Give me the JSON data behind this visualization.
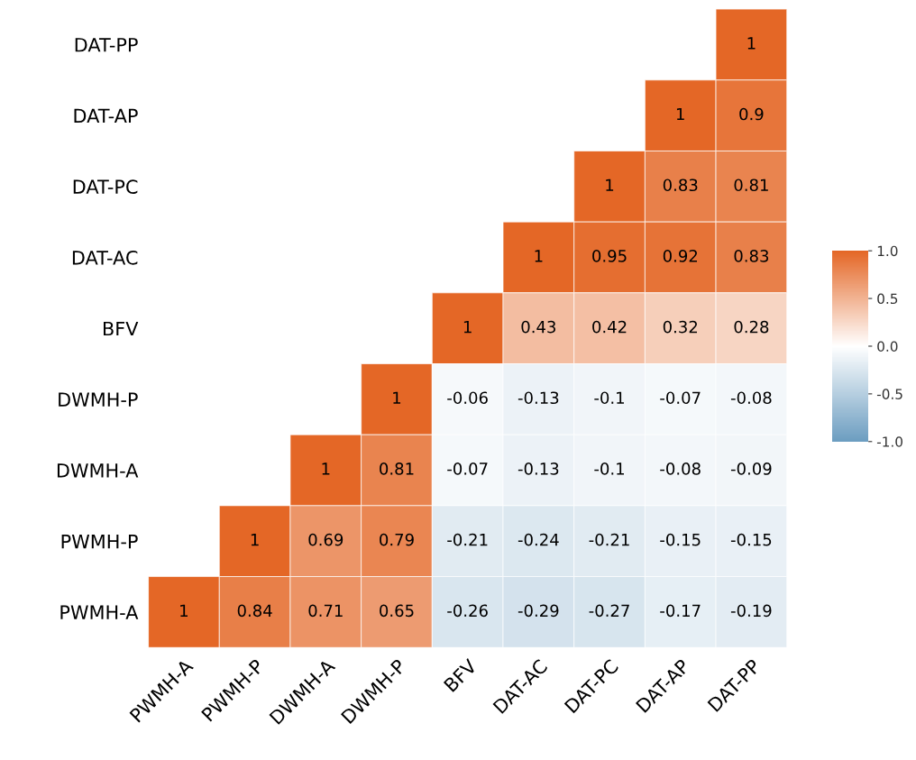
{
  "chart_data": {
    "type": "heatmap",
    "categories": [
      "PWMH-A",
      "PWMH-P",
      "DWMH-A",
      "DWMH-P",
      "BFV",
      "DAT-AC",
      "DAT-PC",
      "DAT-AP",
      "DAT-PP"
    ],
    "y_categories": [
      "DAT-PP",
      "DAT-AP",
      "DAT-PC",
      "DAT-AC",
      "BFV",
      "DWMH-P",
      "DWMH-A",
      "PWMH-P",
      "PWMH-A"
    ],
    "cells": [
      [
        null,
        null,
        null,
        null,
        null,
        null,
        null,
        null,
        1
      ],
      [
        null,
        null,
        null,
        null,
        null,
        null,
        null,
        1,
        0.9
      ],
      [
        null,
        null,
        null,
        null,
        null,
        null,
        1,
        0.83,
        0.81
      ],
      [
        null,
        null,
        null,
        null,
        null,
        1,
        0.95,
        0.92,
        0.83
      ],
      [
        null,
        null,
        null,
        null,
        1,
        0.43,
        0.42,
        0.32,
        0.28
      ],
      [
        null,
        null,
        null,
        1,
        -0.06,
        -0.13,
        -0.1,
        -0.07,
        -0.08
      ],
      [
        null,
        null,
        1,
        0.81,
        -0.07,
        -0.13,
        -0.1,
        -0.08,
        -0.09
      ],
      [
        null,
        1,
        0.69,
        0.79,
        -0.21,
        -0.24,
        -0.21,
        -0.15,
        -0.15
      ],
      [
        1,
        0.84,
        0.71,
        0.65,
        -0.26,
        -0.29,
        -0.27,
        -0.17,
        -0.19
      ]
    ],
    "data_labels": true,
    "colors": [
      "#6d9ec1",
      "#ffffff",
      "#e46726"
    ],
    "clim": [
      -1,
      1
    ],
    "cticks": [
      {
        "value": -1,
        "label": "-1.0"
      },
      {
        "value": -0.5,
        "label": "-0.5"
      },
      {
        "value": 0,
        "label": "0.0"
      },
      {
        "value": 0.5,
        "label": "0.5"
      },
      {
        "value": 1,
        "label": "1.0"
      }
    ]
  }
}
